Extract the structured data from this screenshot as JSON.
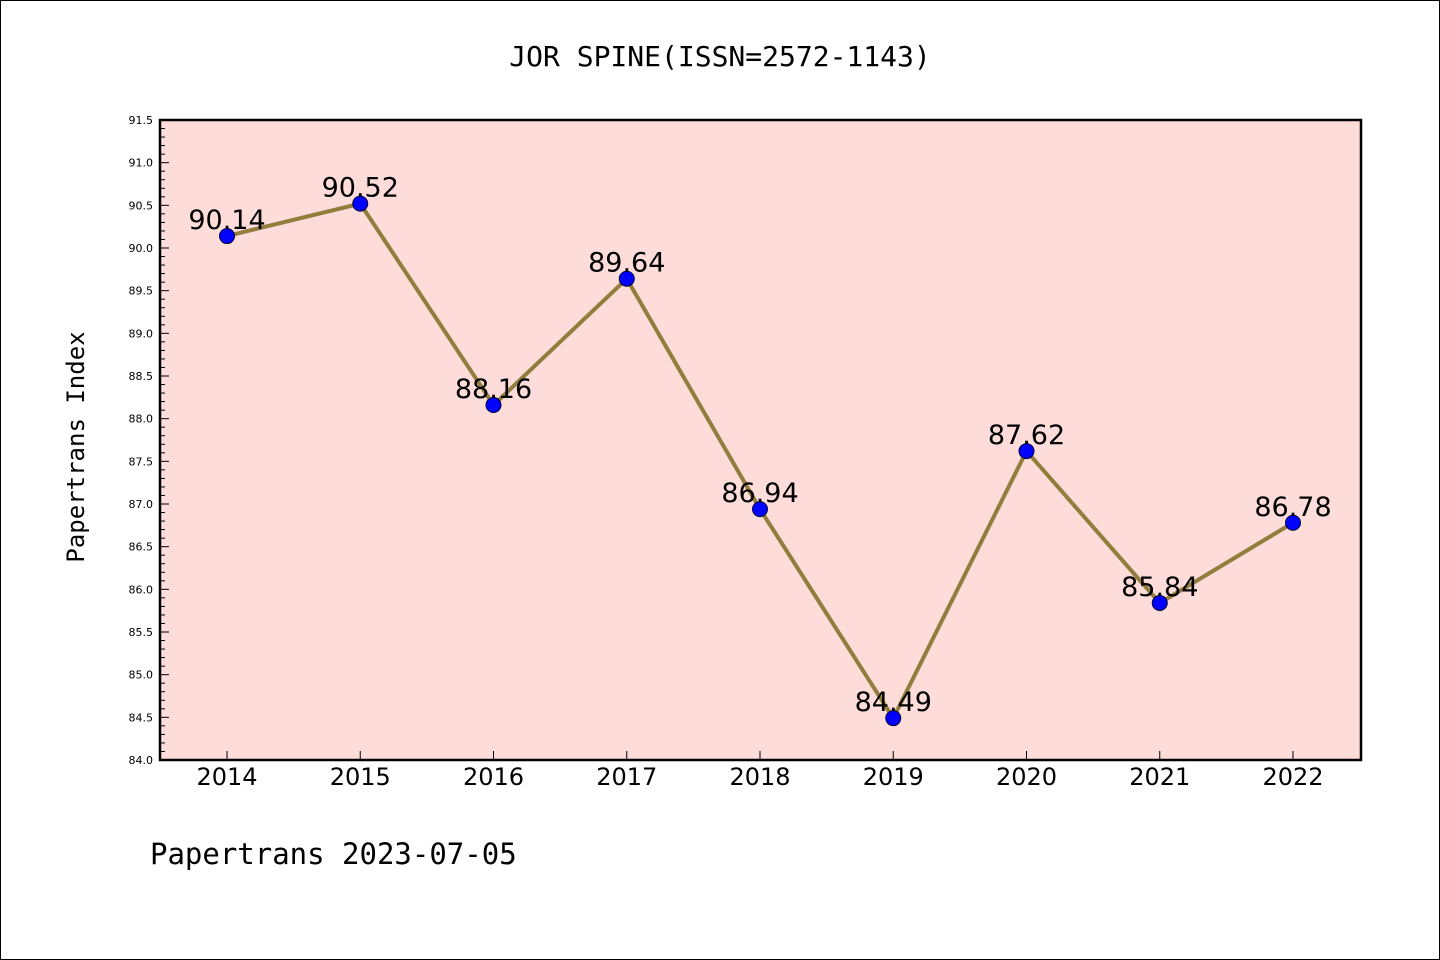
{
  "chart_data": {
    "type": "line",
    "title": "JOR SPINE(ISSN=2572-1143)",
    "xlabel": "",
    "ylabel": "Papertrans Index",
    "categories": [
      "2014",
      "2015",
      "2016",
      "2017",
      "2018",
      "2019",
      "2020",
      "2021",
      "2022"
    ],
    "values": [
      90.14,
      90.52,
      88.16,
      89.64,
      86.94,
      84.49,
      87.62,
      85.84,
      86.78
    ],
    "data_labels": [
      "90.14",
      "90.52",
      "88.16",
      "89.64",
      "86.94",
      "84.49",
      "87.62",
      "85.84",
      "86.78"
    ],
    "ylim": [
      84.0,
      91.5
    ],
    "yticks": [
      "84.0",
      "84.5",
      "85.0",
      "85.5",
      "86.0",
      "86.5",
      "87.0",
      "87.5",
      "88.0",
      "88.5",
      "89.0",
      "89.5",
      "90.0",
      "90.5",
      "91.0",
      "91.5"
    ],
    "grid": false,
    "legend": "none",
    "colors": {
      "plot_background": "#fddcda",
      "line": "#927d3c",
      "marker": "#0000ff"
    }
  },
  "footer": "Papertrans 2023-07-05"
}
